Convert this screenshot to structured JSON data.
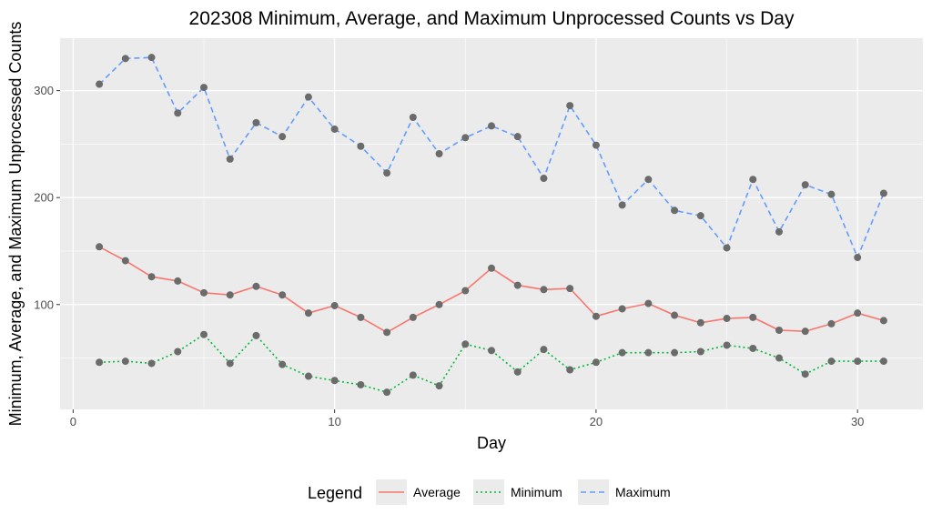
{
  "chart_data": {
    "type": "line",
    "title": "202308 Minimum, Average, and Maximum Unprocessed Counts vs Day",
    "xlabel": "Day",
    "ylabel": "Minimum, Average, and Maximum Unprocessed Counts",
    "xlim": [
      -0.5,
      32.5
    ],
    "ylim": [
      2,
      349
    ],
    "x_ticks": [
      0,
      10,
      20,
      30
    ],
    "x_tick_labels": [
      "0",
      "10",
      "20",
      "30"
    ],
    "y_ticks": [
      100,
      200,
      300
    ],
    "y_tick_labels": [
      "100",
      "200",
      "300"
    ],
    "grid": true,
    "legend": {
      "title": "Legend",
      "position": "bottom"
    },
    "x": [
      1,
      2,
      3,
      4,
      5,
      6,
      7,
      8,
      9,
      10,
      11,
      12,
      13,
      14,
      15,
      16,
      17,
      18,
      19,
      20,
      21,
      22,
      23,
      24,
      25,
      26,
      27,
      28,
      29,
      30,
      31
    ],
    "series": [
      {
        "name": "Average",
        "color": "#f8766d",
        "dash": "solid",
        "values": [
          154,
          141,
          126,
          122,
          111,
          109,
          117,
          109,
          92,
          99,
          88,
          74,
          88,
          100,
          113,
          134,
          118,
          114,
          115,
          89,
          96,
          101,
          90,
          83,
          87,
          88,
          76,
          75,
          82,
          92,
          85
        ]
      },
      {
        "name": "Minimum",
        "color": "#00ba38",
        "dash": "dotted",
        "values": [
          46,
          47,
          45,
          56,
          72,
          45,
          71,
          44,
          33,
          29,
          25,
          18,
          34,
          24,
          63,
          57,
          37,
          58,
          39,
          46,
          55,
          55,
          55,
          56,
          62,
          59,
          50,
          35,
          47,
          47,
          47
        ]
      },
      {
        "name": "Maximum",
        "color": "#619cff",
        "dash": "dashed",
        "values": [
          306,
          330,
          331,
          279,
          303,
          236,
          270,
          257,
          294,
          264,
          248,
          223,
          275,
          241,
          256,
          267,
          257,
          218,
          286,
          249,
          193,
          217,
          188,
          183,
          153,
          217,
          168,
          212,
          203,
          144,
          204
        ]
      }
    ],
    "point_color": "#6b6b6b",
    "panel_background": "#ebebeb",
    "gridline_color": "#ffffff"
  }
}
